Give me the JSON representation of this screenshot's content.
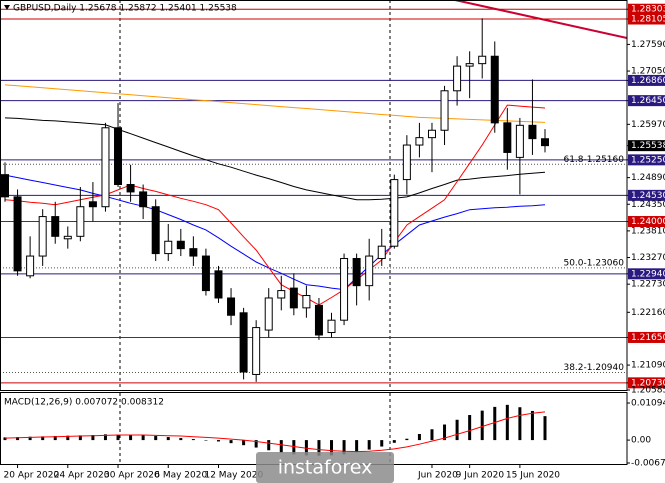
{
  "chart_data": [
    {
      "type": "candlestick",
      "title": "GBPUSD,Daily  1.25678 1.25872 1.25401 1.25538",
      "categories": [
        null,
        "20 Apr 2020",
        null,
        null,
        null,
        "24 Apr 2020",
        null,
        null,
        null,
        "30 Apr 2020",
        null,
        null,
        null,
        "6 May 2020",
        null,
        null,
        null,
        "12 May 2020",
        null,
        null,
        null,
        null,
        null,
        null,
        null,
        null,
        null,
        null,
        null,
        null,
        null,
        null,
        null,
        null,
        "Jun 2020",
        null,
        null,
        "9 Jun 2020",
        null,
        null,
        null,
        "15 Jun 2020",
        null,
        null
      ],
      "open": [
        1.2495,
        1.245,
        1.229,
        1.233,
        1.241,
        1.2365,
        1.237,
        1.244,
        1.243,
        1.259,
        1.2475,
        1.246,
        1.243,
        1.2335,
        1.236,
        1.2345,
        1.233,
        1.23,
        1.2245,
        1.2215,
        1.209,
        1.218,
        1.2245,
        1.2265,
        1.2225,
        1.223,
        1.2175,
        1.22,
        1.2325,
        1.227,
        1.2325,
        1.235,
        1.2485,
        1.2555,
        1.257,
        1.2585,
        1.2665,
        1.2715,
        1.272,
        1.2735,
        1.26,
        1.253,
        1.2595,
        1.25678
      ],
      "high": [
        1.252,
        1.2465,
        1.237,
        1.2425,
        1.244,
        1.239,
        1.247,
        1.248,
        1.26,
        1.264,
        1.2515,
        1.2475,
        1.2445,
        1.2395,
        1.2385,
        1.237,
        1.2345,
        1.231,
        1.2265,
        1.2225,
        1.22,
        1.2265,
        1.229,
        1.2295,
        1.227,
        1.2245,
        1.2215,
        1.2335,
        1.2335,
        1.2365,
        1.2385,
        1.2495,
        1.2575,
        1.26,
        1.26,
        1.2675,
        1.2735,
        1.2745,
        1.2812,
        1.2765,
        1.263,
        1.261,
        1.2688,
        1.25872
      ],
      "low": [
        1.244,
        1.229,
        1.2285,
        1.231,
        1.2355,
        1.2345,
        1.236,
        1.24,
        1.242,
        1.247,
        1.244,
        1.2405,
        1.232,
        1.232,
        1.233,
        1.231,
        1.225,
        1.2235,
        1.219,
        1.208,
        1.2075,
        1.2165,
        1.222,
        1.221,
        1.2205,
        1.216,
        1.2165,
        1.219,
        1.223,
        1.224,
        1.231,
        1.2345,
        1.2455,
        1.253,
        1.25,
        1.2555,
        1.2635,
        1.265,
        1.269,
        1.258,
        1.2505,
        1.2455,
        1.2535,
        1.25401
      ],
      "close": [
        1.245,
        1.23,
        1.233,
        1.241,
        1.237,
        1.237,
        1.243,
        1.243,
        1.259,
        1.2475,
        1.246,
        1.243,
        1.2335,
        1.236,
        1.2345,
        1.233,
        1.226,
        1.2245,
        1.221,
        1.2095,
        1.2185,
        1.2245,
        1.226,
        1.2225,
        1.225,
        1.217,
        1.22,
        1.2325,
        1.227,
        1.233,
        1.235,
        1.2485,
        1.2555,
        1.257,
        1.2585,
        1.2665,
        1.2715,
        1.272,
        1.2735,
        1.26,
        1.254,
        1.2595,
        1.2568,
        1.25538
      ],
      "up_color": "#ffffff",
      "down_color": "#000000",
      "series": [
        {
          "color": "#ff9900",
          "values": [
            1.2677,
            1.2675,
            1.2673,
            1.2671,
            1.2669,
            1.2667,
            1.2665,
            1.2663,
            1.2661,
            1.2659,
            1.2657,
            1.2655,
            1.2653,
            1.2651,
            1.2649,
            1.2647,
            1.2645,
            1.2643,
            1.2641,
            1.2639,
            1.2637,
            1.2635,
            1.2633,
            1.2631,
            1.2629,
            1.2627,
            1.2625,
            1.2623,
            1.2621,
            1.2619,
            1.2617,
            1.2615,
            1.2613,
            1.2611,
            1.261,
            1.2609,
            1.2608,
            1.2607,
            1.2606,
            1.2605,
            1.2604,
            1.2603,
            1.2602,
            1.2601
          ]
        },
        {
          "color": "#000000",
          "values": [
            1.261,
            1.2609,
            1.2607,
            1.2605,
            1.2604,
            1.2602,
            1.26,
            1.2598,
            1.2596,
            1.2587,
            1.2578,
            1.2569,
            1.256,
            1.2551,
            1.2542,
            1.2533,
            1.2525,
            1.2517,
            1.251,
            1.2502,
            1.2494,
            1.2487,
            1.2479,
            1.2471,
            1.2464,
            1.2459,
            1.2454,
            1.2449,
            1.2444,
            1.2444,
            1.2445,
            1.2447,
            1.245,
            1.2458,
            1.2467,
            1.2475,
            1.2484,
            1.2486,
            1.2489,
            1.2491,
            1.2493,
            1.2496,
            1.2498,
            1.25
          ]
        },
        {
          "color": "#0000ff",
          "values": [
            1.2494,
            1.2489,
            1.2484,
            1.2479,
            1.2474,
            1.2469,
            1.2464,
            1.2457,
            1.2451,
            1.2444,
            1.2437,
            1.2431,
            1.2424,
            1.2414,
            1.2404,
            1.2393,
            1.2383,
            1.2367,
            1.235,
            1.2334,
            1.2318,
            1.2306,
            1.2295,
            1.2283,
            1.2272,
            1.2269,
            1.2265,
            1.2262,
            1.2286,
            1.2309,
            1.2333,
            1.2353,
            1.2373,
            1.2393,
            1.2401,
            1.2409,
            1.2416,
            1.2424,
            1.2426,
            1.2428,
            1.2429,
            1.2431,
            1.2432,
            1.2434
          ]
        },
        {
          "color": "#ff0000",
          "values": [
            1.2444,
            1.2442,
            1.2439,
            1.2437,
            1.2434,
            1.2439,
            1.2444,
            1.2449,
            1.2454,
            1.2464,
            1.2474,
            1.2467,
            1.2461,
            1.2454,
            1.2447,
            1.2441,
            1.2434,
            1.2424,
            1.2397,
            1.2369,
            1.2342,
            1.2307,
            1.2272,
            1.2258,
            1.2245,
            1.2231,
            1.2246,
            1.2262,
            1.2282,
            1.2302,
            1.2322,
            1.2358,
            1.2393,
            1.241,
            1.2427,
            1.2444,
            1.2481,
            1.2518,
            1.2555,
            1.2596,
            1.2636,
            1.2634,
            1.2632,
            1.263
          ]
        }
      ],
      "ylim": [
        1.20585,
        1.2849
      ],
      "yticks": [
        {
          "value": 1.28303,
          "label": "1.28303",
          "color": "#cc0000",
          "level": true
        },
        {
          "value": 1.28105,
          "label": "1.28105",
          "color": "#cc0000",
          "level": true
        },
        {
          "value": 1.2759,
          "label": "1.27590"
        },
        {
          "value": 1.2705,
          "label": "1.27050"
        },
        {
          "value": 1.2686,
          "label": "1.26860",
          "color": "#2a1a80",
          "level": true
        },
        {
          "value": 1.2645,
          "label": "1.26450",
          "color": "#2a1a80",
          "level": true
        },
        {
          "value": 1.2597,
          "label": "1.25970"
        },
        {
          "value": 1.25538,
          "label": "1.25538",
          "color": "#000000"
        },
        {
          "value": 1.2525,
          "label": "1.25250",
          "color": "#2a1a80",
          "level": true
        },
        {
          "value": 1.2489,
          "label": "1.24890"
        },
        {
          "value": 1.2453,
          "label": "1.24530",
          "color": "#2a1a80",
          "level": true
        },
        {
          "value": 1.2435,
          "label": "1.24350"
        },
        {
          "value": 1.24,
          "label": "1.24000",
          "color": "#cc0000",
          "level": true
        },
        {
          "value": 1.2381,
          "label": "1.23810"
        },
        {
          "value": 1.2327,
          "label": "1.23270"
        },
        {
          "value": 1.2294,
          "label": "1.22940",
          "color": "#2a1a80",
          "level": true
        },
        {
          "value": 1.2273,
          "label": "1.22730"
        },
        {
          "value": 1.2216,
          "label": "1.22160"
        },
        {
          "value": 1.2165,
          "label": "1.21650",
          "color": "#cc0000",
          "level": true
        },
        {
          "value": 1.2109,
          "label": "1.21090"
        },
        {
          "value": 1.2073,
          "label": "1.20730",
          "color": "#cc0000",
          "level": true
        },
        1.20585
      ],
      "annotations": [
        {
          "text": "61.8-1.25160",
          "value": 1.2516
        },
        {
          "text": "50.0-1.23060",
          "value": 1.2306
        },
        {
          "text": "38.2-1.20940",
          "value": 1.2094
        }
      ]
    },
    {
      "type": "macd",
      "title": "MACD(12,26,9) 0.007072 0.008312",
      "color": "#000000",
      "values": [
        0.0008,
        0.0009,
        0.001,
        0.0011,
        0.0012,
        0.0013,
        0.0014,
        0.0015,
        0.0017,
        0.0016,
        0.0015,
        0.0014,
        0.0012,
        0.0009,
        0.0006,
        0.0003,
        0.0,
        -0.0004,
        -0.0009,
        -0.0015,
        -0.0022,
        -0.003,
        -0.0037,
        -0.0042,
        -0.0045,
        -0.0046,
        -0.0045,
        -0.0042,
        -0.0036,
        -0.0028,
        -0.0019,
        -0.0008,
        0.0004,
        0.0018,
        0.0032,
        0.0046,
        0.006,
        0.0074,
        0.0087,
        0.0098,
        0.0104,
        0.0097,
        0.0086,
        0.007072
      ],
      "signal_color": "#ff0000",
      "signal": [
        0.0006,
        0.0007,
        0.0008,
        0.0009,
        0.001,
        0.0011,
        0.0012,
        0.0013,
        0.0014,
        0.0015,
        0.0015,
        0.0015,
        0.0014,
        0.0013,
        0.0012,
        0.001,
        0.0008,
        0.0006,
        0.0003,
        0.0,
        -0.0004,
        -0.0009,
        -0.0014,
        -0.0019,
        -0.0024,
        -0.0028,
        -0.0031,
        -0.0033,
        -0.0034,
        -0.0033,
        -0.003,
        -0.0026,
        -0.002,
        -0.0012,
        -0.0003,
        0.0006,
        0.0017,
        0.0028,
        0.004,
        0.0052,
        0.0064,
        0.0073,
        0.0079,
        0.008312
      ],
      "ylim": [
        -0.00735,
        0.0139
      ],
      "yticks": [
        0.010942,
        {
          "value": 0,
          "label": "0.00"
        },
        {
          "value": -0.00676,
          "label": "-0.006760"
        }
      ]
    }
  ],
  "watermark": "instaforex"
}
